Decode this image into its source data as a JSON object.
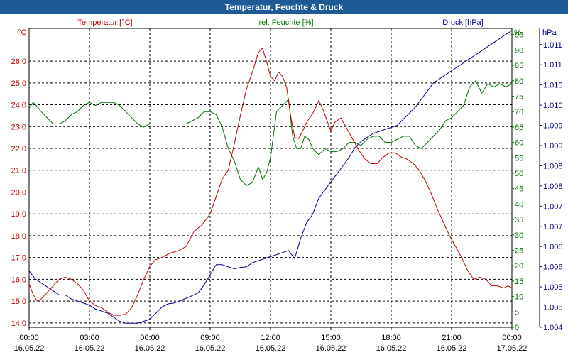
{
  "title": "Temperatur, Feuchte & Druck",
  "chart_data": {
    "type": "line",
    "title": "Temperatur, Feuchte & Druck",
    "x_ticks": [
      {
        "t": 0,
        "time": "00:00",
        "date": "16.05.22"
      },
      {
        "t": 3,
        "time": "03:00",
        "date": "16.05.22"
      },
      {
        "t": 6,
        "time": "06:00",
        "date": "16.05.22"
      },
      {
        "t": 9,
        "time": "09:00",
        "date": "16.05.22"
      },
      {
        "t": 12,
        "time": "12:00",
        "date": "16.05.22"
      },
      {
        "t": 15,
        "time": "15:00",
        "date": "16.05.22"
      },
      {
        "t": 18,
        "time": "18:00",
        "date": "16.05.22"
      },
      {
        "t": 21,
        "time": "21:00",
        "date": "16.05.22"
      },
      {
        "t": 24,
        "time": "00:00",
        "date": "17.05.22"
      }
    ],
    "xlim": [
      0,
      24
    ],
    "temperature": {
      "name": "Temperatur [°C]",
      "unit": "°C",
      "color": "#c00000",
      "ylim": [
        13.8,
        27.5
      ],
      "ticks": [
        "14,0",
        "15,0",
        "16,0",
        "17,0",
        "18,0",
        "19,0",
        "20,0",
        "21,0",
        "22,0",
        "23,0",
        "24,0",
        "25,0",
        "26,0"
      ],
      "tick_values": [
        14,
        15,
        16,
        17,
        18,
        19,
        20,
        21,
        22,
        23,
        24,
        25,
        26
      ],
      "x": [
        0,
        0.2,
        0.4,
        0.6,
        0.9,
        1.2,
        1.5,
        1.8,
        2.1,
        2.4,
        2.7,
        3.0,
        3.3,
        3.6,
        3.9,
        4.2,
        4.5,
        4.8,
        5.1,
        5.4,
        5.7,
        6.0,
        6.3,
        6.6,
        7.0,
        7.4,
        7.8,
        8.2,
        8.6,
        9.0,
        9.3,
        9.6,
        9.9,
        10.2,
        10.5,
        10.8,
        11.1,
        11.4,
        11.6,
        11.8,
        12.0,
        12.2,
        12.4,
        12.6,
        12.8,
        13.0,
        13.2,
        13.4,
        13.6,
        13.8,
        14.1,
        14.4,
        14.6,
        14.8,
        15.0,
        15.2,
        15.5,
        15.8,
        16.1,
        16.4,
        16.7,
        17.0,
        17.3,
        17.6,
        17.9,
        18.2,
        18.5,
        18.8,
        19.1,
        19.4,
        19.7,
        20.0,
        20.3,
        20.6,
        20.9,
        21.2,
        21.5,
        21.8,
        22.1,
        22.4,
        22.7,
        23.0,
        23.3,
        23.6,
        23.8,
        24.0
      ],
      "values": [
        15.8,
        15.3,
        15.0,
        15.1,
        15.4,
        15.7,
        16.0,
        16.1,
        16.0,
        15.8,
        15.5,
        15.0,
        14.8,
        14.7,
        14.5,
        14.35,
        14.35,
        14.4,
        14.7,
        15.3,
        16.0,
        16.6,
        16.9,
        17.0,
        17.2,
        17.3,
        17.5,
        18.2,
        18.5,
        19.0,
        19.8,
        20.6,
        21.0,
        22.2,
        23.5,
        24.7,
        25.5,
        26.4,
        26.6,
        26.0,
        25.3,
        25.1,
        25.5,
        25.3,
        24.8,
        23.5,
        22.5,
        22.45,
        22.8,
        23.2,
        23.6,
        24.2,
        23.8,
        23.3,
        22.8,
        23.2,
        23.4,
        22.9,
        22.4,
        21.9,
        21.5,
        21.3,
        21.3,
        21.6,
        21.8,
        21.8,
        21.6,
        21.5,
        21.3,
        21.0,
        20.5,
        19.9,
        19.2,
        18.6,
        18.0,
        17.5,
        17.0,
        16.4,
        16.0,
        16.1,
        16.0,
        15.7,
        15.7,
        15.6,
        15.7,
        15.6
      ]
    },
    "humidity": {
      "name": "rel. Feuchte [%]",
      "unit": "%",
      "color": "#007000",
      "ylim": [
        0,
        97
      ],
      "ticks": [
        "0",
        "5",
        "10",
        "15",
        "20",
        "25",
        "30",
        "35",
        "40",
        "45",
        "50",
        "55",
        "60",
        "65",
        "70",
        "75",
        "80",
        "85",
        "90",
        "95"
      ],
      "tick_values": [
        0,
        5,
        10,
        15,
        20,
        25,
        30,
        35,
        40,
        45,
        50,
        55,
        60,
        65,
        70,
        75,
        80,
        85,
        90,
        95
      ],
      "x": [
        0,
        0.2,
        0.35,
        0.6,
        0.9,
        1.2,
        1.5,
        1.8,
        2.1,
        2.4,
        2.7,
        3.0,
        3.3,
        3.6,
        3.9,
        4.2,
        4.5,
        4.8,
        5.1,
        5.4,
        5.7,
        6.0,
        6.3,
        6.6,
        7.0,
        7.4,
        7.8,
        8.1,
        8.4,
        8.7,
        9.0,
        9.3,
        9.6,
        9.9,
        10.2,
        10.5,
        10.8,
        11.1,
        11.4,
        11.6,
        11.8,
        12.0,
        12.3,
        12.6,
        12.9,
        13.1,
        13.3,
        13.5,
        13.7,
        13.9,
        14.1,
        14.4,
        14.7,
        15.0,
        15.3,
        15.6,
        15.9,
        16.2,
        16.5,
        16.8,
        17.1,
        17.4,
        17.7,
        18.0,
        18.3,
        18.6,
        18.9,
        19.2,
        19.5,
        19.8,
        20.1,
        20.4,
        20.7,
        21.0,
        21.3,
        21.6,
        21.9,
        22.2,
        22.5,
        22.8,
        23.1,
        23.4,
        23.7,
        24.0
      ],
      "values": [
        71,
        73,
        72,
        70,
        68,
        66,
        66,
        67,
        69,
        70,
        72,
        73,
        72,
        73,
        73,
        73,
        72,
        70,
        68,
        66,
        65,
        66,
        66,
        66,
        66,
        66,
        66,
        67,
        68,
        70,
        70,
        69,
        65,
        58,
        54,
        48,
        46,
        47,
        52,
        48,
        50,
        55,
        70,
        72,
        74,
        62,
        58,
        58,
        62,
        61,
        58,
        56,
        58,
        57,
        57,
        58,
        60,
        60,
        59,
        61,
        62,
        62,
        60,
        60,
        61,
        62,
        62,
        59,
        58,
        60,
        62,
        64,
        67,
        68,
        70,
        72,
        78,
        80,
        76,
        79,
        78,
        79,
        78,
        79
      ]
    },
    "pressure": {
      "name": "Druck [hPa]",
      "unit": "hPa",
      "color": "#00008b",
      "ylim": [
        1004.4,
        1011.8
      ],
      "ticks": [
        "1.004",
        "1.005",
        "1.005",
        "1.006",
        "1.006",
        "1.007",
        "1.007",
        "1.008",
        "1.008",
        "1.009",
        "1.009",
        "1.010",
        "1.010",
        "1.011",
        "1.011"
      ],
      "tick_values": [
        1004.4,
        1004.9,
        1005.4,
        1005.9,
        1006.4,
        1006.9,
        1007.4,
        1007.9,
        1008.4,
        1008.9,
        1009.4,
        1009.9,
        1010.4,
        1010.9,
        1011.4
      ],
      "x": [
        0,
        0.3,
        0.6,
        0.9,
        1.2,
        1.5,
        1.8,
        2.1,
        2.4,
        2.7,
        3.0,
        3.3,
        3.6,
        3.9,
        4.2,
        4.5,
        4.8,
        5.1,
        5.4,
        5.7,
        6.0,
        6.3,
        6.6,
        6.9,
        7.2,
        7.5,
        7.8,
        8.1,
        8.4,
        8.7,
        9.0,
        9.3,
        9.6,
        9.9,
        10.2,
        10.5,
        10.8,
        11.1,
        11.4,
        11.7,
        12.0,
        12.3,
        12.6,
        12.9,
        13.2,
        13.5,
        13.8,
        14.1,
        14.4,
        14.7,
        15.0,
        15.3,
        15.6,
        15.9,
        16.2,
        16.5,
        16.8,
        17.1,
        17.4,
        17.7,
        18.0,
        18.3,
        18.6,
        18.9,
        19.2,
        19.5,
        19.8,
        20.1,
        20.4,
        20.7,
        21.0,
        21.3,
        21.6,
        21.9,
        22.2,
        22.5,
        22.8,
        23.1,
        23.4,
        23.7,
        24.0
      ],
      "values": [
        1005.8,
        1005.6,
        1005.5,
        1005.4,
        1005.3,
        1005.2,
        1005.2,
        1005.1,
        1005.05,
        1005.0,
        1004.95,
        1004.85,
        1004.8,
        1004.75,
        1004.65,
        1004.55,
        1004.5,
        1004.5,
        1004.5,
        1004.55,
        1004.6,
        1004.75,
        1004.9,
        1004.98,
        1005.0,
        1005.05,
        1005.12,
        1005.18,
        1005.25,
        1005.45,
        1005.7,
        1005.95,
        1005.95,
        1005.9,
        1005.85,
        1005.88,
        1005.9,
        1006.0,
        1006.05,
        1006.1,
        1006.15,
        1006.2,
        1006.25,
        1006.3,
        1006.1,
        1006.6,
        1007.0,
        1007.2,
        1007.6,
        1007.8,
        1008.0,
        1008.2,
        1008.4,
        1008.6,
        1008.85,
        1009.0,
        1009.1,
        1009.2,
        1009.25,
        1009.3,
        1009.35,
        1009.4,
        1009.55,
        1009.7,
        1009.85,
        1010.05,
        1010.25,
        1010.45,
        1010.55,
        1010.65,
        1010.75,
        1010.85,
        1010.95,
        1011.05,
        1011.15,
        1011.25,
        1011.35,
        1011.45,
        1011.55,
        1011.65,
        1011.75
      ]
    }
  }
}
